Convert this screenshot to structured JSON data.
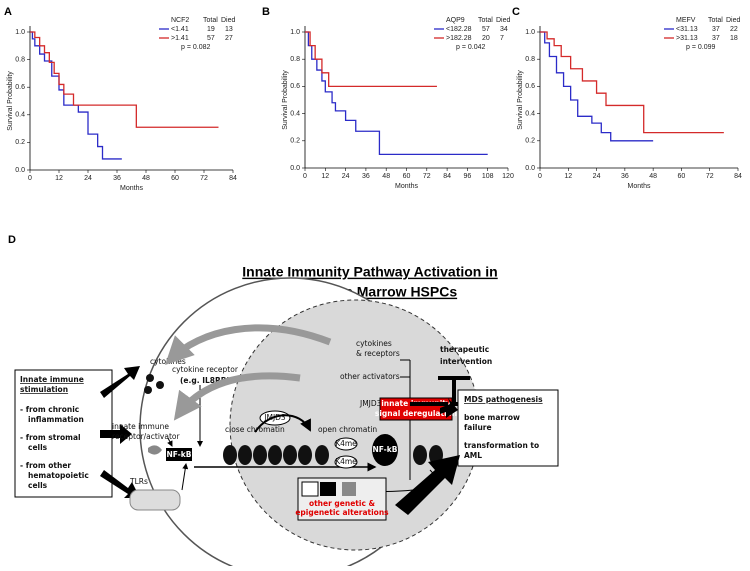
{
  "chart_data": [
    {
      "type": "step",
      "panel_label": "A",
      "xlabel": "Months",
      "ylabel": "Survival Probability",
      "xlim": [
        0,
        84
      ],
      "xticks": [
        0,
        12,
        24,
        36,
        48,
        60,
        72,
        84
      ],
      "ylim": [
        0,
        1
      ],
      "yticks": [
        {
          "value": 0,
          "label": "0.0"
        },
        0.2,
        0.4,
        0.6,
        0.8,
        {
          "value": 1,
          "label": "1.0"
        }
      ],
      "legend_title": "NCF2",
      "legend_columns": [
        "Total",
        "Died"
      ],
      "legend": "upper right",
      "p_value_label": "p = 0.082",
      "series": [
        {
          "name": "<1.41",
          "color": "#2b2bc8",
          "total": 19,
          "died": 13,
          "x": [
            0,
            1,
            2,
            4,
            6,
            9,
            12,
            14,
            20,
            24,
            28,
            30,
            38
          ],
          "values": [
            1,
            0.95,
            0.9,
            0.84,
            0.79,
            0.68,
            0.58,
            0.47,
            0.42,
            0.26,
            0.17,
            0.08,
            0.08
          ]
        },
        {
          "name": ">1.41",
          "color": "#d42a2a",
          "total": 57,
          "died": 27,
          "x": [
            0,
            2,
            4,
            6,
            8,
            10,
            12,
            14,
            18,
            44,
            78
          ],
          "values": [
            1,
            0.96,
            0.9,
            0.85,
            0.78,
            0.7,
            0.62,
            0.55,
            0.47,
            0.31,
            0.31
          ]
        }
      ]
    },
    {
      "type": "step",
      "panel_label": "B",
      "xlabel": "Months",
      "ylabel": "Survival Probability",
      "xlim": [
        0,
        120
      ],
      "xticks": [
        0,
        12,
        24,
        36,
        48,
        60,
        72,
        84,
        96,
        108,
        120
      ],
      "ylim": [
        0,
        1
      ],
      "yticks": [
        {
          "value": 0,
          "label": "0.0"
        },
        0.2,
        0.4,
        0.6,
        0.8,
        {
          "value": 1,
          "label": "1.0"
        }
      ],
      "legend_title": "AQP9",
      "legend_columns": [
        "Total",
        "Died"
      ],
      "legend": "upper right",
      "p_value_label": "p = 0.042",
      "series": [
        {
          "name": "<182.28",
          "color": "#2b2bc8",
          "total": 57,
          "died": 34,
          "x": [
            0,
            2,
            4,
            7,
            10,
            12,
            16,
            18,
            24,
            30,
            44,
            108
          ],
          "values": [
            1,
            0.9,
            0.8,
            0.72,
            0.64,
            0.56,
            0.48,
            0.42,
            0.35,
            0.27,
            0.1,
            0.1
          ]
        },
        {
          "name": ">182.28",
          "color": "#d42a2a",
          "total": 20,
          "died": 7,
          "x": [
            0,
            3,
            6,
            10,
            14,
            78
          ],
          "values": [
            1,
            0.9,
            0.8,
            0.7,
            0.6,
            0.6
          ]
        }
      ]
    },
    {
      "type": "step",
      "panel_label": "C",
      "xlabel": "Months",
      "ylabel": "Survival Probability",
      "xlim": [
        0,
        84
      ],
      "xticks": [
        0,
        12,
        24,
        36,
        48,
        60,
        72,
        84
      ],
      "ylim": [
        0,
        1
      ],
      "yticks": [
        {
          "value": 0,
          "label": "0.0"
        },
        0.2,
        0.4,
        0.6,
        0.8,
        {
          "value": 1,
          "label": "1.0"
        }
      ],
      "legend_title": "MEFV",
      "legend_columns": [
        "Total",
        "Died"
      ],
      "legend": "upper right",
      "p_value_label": "p = 0.099",
      "series": [
        {
          "name": "<31.13",
          "color": "#2b2bc8",
          "total": 37,
          "died": 22,
          "x": [
            0,
            2,
            4,
            7,
            10,
            13,
            16,
            22,
            26,
            30,
            48
          ],
          "values": [
            1,
            0.92,
            0.82,
            0.7,
            0.6,
            0.5,
            0.38,
            0.33,
            0.26,
            0.2,
            0.2
          ]
        },
        {
          "name": ">31.13",
          "color": "#d42a2a",
          "total": 37,
          "died": 18,
          "x": [
            0,
            3,
            6,
            9,
            13,
            18,
            24,
            28,
            44,
            78
          ],
          "values": [
            1,
            0.95,
            0.9,
            0.82,
            0.73,
            0.64,
            0.55,
            0.46,
            0.26,
            0.26
          ]
        }
      ]
    }
  ],
  "diagram": {
    "panel_label": "D",
    "title": [
      "Innate Immunity Pathway Activation in",
      "MDS Bone Marrow HSPCs"
    ],
    "stimulation_box": {
      "heading": [
        "Innate immune",
        "stimulation"
      ],
      "items": [
        "- from chronic",
        "inflammation",
        "- from stromal",
        "cells",
        "- from other",
        "hematopoietic",
        "cells"
      ]
    },
    "cytokines": "cytokines",
    "cytokine_receptor": [
      "cytokine receptor",
      "(e.g. IL8RB)"
    ],
    "innate_receptor": [
      "innate immune",
      "receptor/activator"
    ],
    "nfkb_cyto": "NF-kB",
    "tlrs": "TLRs",
    "nucleus_cytokines": [
      "cytokines",
      "& receptors"
    ],
    "other_activators": "other activators",
    "jmjd3_target": "JMJD3",
    "jmjd3_bubble": "JMJD3",
    "close_chromatin": "close chromatin",
    "open_chromatin": "open chromatin",
    "k4me": [
      "K4me",
      "K4me"
    ],
    "nfkb_nuc": "NF-kB",
    "deregulation": [
      "innate immunity",
      "signal deregulation"
    ],
    "therapeutic": [
      "therapeutic",
      "intervention"
    ],
    "mds_box": {
      "heading": "MDS pathogenesis",
      "items": [
        "bone marrow",
        "failure",
        "transformation to",
        "AML"
      ]
    },
    "alterations": [
      "other genetic &",
      "epigenetic alterations"
    ]
  }
}
